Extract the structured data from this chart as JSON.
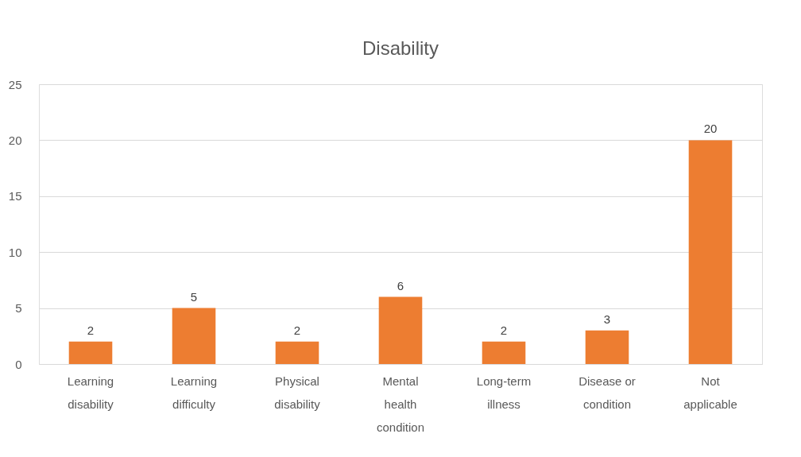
{
  "chart_data": {
    "type": "bar",
    "title": "Disability",
    "categories": [
      "Learning disability",
      "Learning difficulty",
      "Physical disability",
      "Mental health condition",
      "Long-term illness",
      "Disease or condition",
      "Not applicable"
    ],
    "values": [
      2,
      5,
      2,
      6,
      2,
      3,
      20
    ],
    "color": "#ed7d31",
    "ylim": [
      0,
      25
    ],
    "yticks": [
      0,
      5,
      10,
      15,
      20,
      25
    ],
    "grid": "y",
    "data_labels": true
  }
}
